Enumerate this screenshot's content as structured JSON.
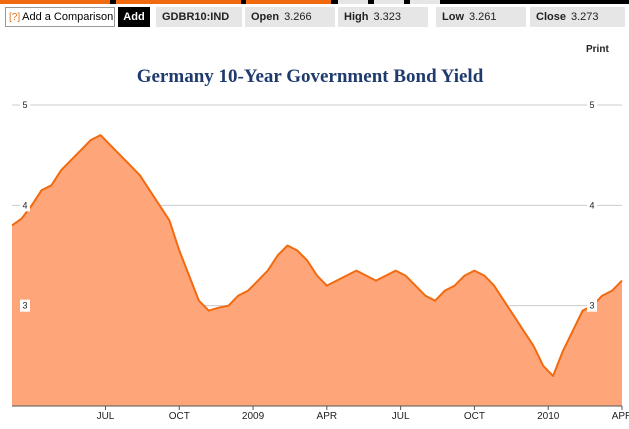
{
  "toolbar": {
    "help_icon": "[?]",
    "add_comparison_label": "Add a Comparison",
    "add_button_label": "Add",
    "ticker": "GDBR10:IND",
    "open_label": "Open",
    "open_value": "3.266",
    "high_label": "High",
    "high_value": "3.323",
    "low_label": "Low",
    "low_value": "3.261",
    "close_label": "Close",
    "close_value": "3.273"
  },
  "print_label": "Print",
  "colors": {
    "accent": "#f26a0f",
    "area_fill": "#ffa57a",
    "title": "#1f3b6e"
  },
  "chart_data": {
    "type": "area",
    "title": "Germany 10-Year Government Bond Yield",
    "xlabel": "",
    "ylabel": "",
    "ylim": [
      2.0,
      5.1
    ],
    "xlim": [
      0,
      24.8
    ],
    "yticks": [
      3,
      4,
      5
    ],
    "ytick_labels": [
      "3",
      "4",
      "5"
    ],
    "xticks": [
      {
        "value": 3.8,
        "label": "JUL"
      },
      {
        "value": 6.8,
        "label": "OCT"
      },
      {
        "value": 9.8,
        "label": "2009"
      },
      {
        "value": 12.8,
        "label": "APR"
      },
      {
        "value": 15.8,
        "label": "JUL"
      },
      {
        "value": 18.8,
        "label": "OCT"
      },
      {
        "value": 21.8,
        "label": "2010"
      },
      {
        "value": 24.8,
        "label": "APR"
      }
    ],
    "grid": true,
    "series": [
      {
        "name": "GDBR10:IND",
        "x": [
          0,
          0.4,
          0.8,
          1.2,
          1.6,
          2.0,
          2.4,
          2.8,
          3.2,
          3.6,
          4.0,
          4.4,
          4.8,
          5.2,
          5.6,
          6.0,
          6.4,
          6.8,
          7.2,
          7.6,
          8.0,
          8.4,
          8.8,
          9.2,
          9.6,
          10.0,
          10.4,
          10.8,
          11.2,
          11.6,
          12.0,
          12.4,
          12.8,
          13.2,
          13.6,
          14.0,
          14.4,
          14.8,
          15.2,
          15.6,
          16.0,
          16.4,
          16.8,
          17.2,
          17.6,
          18.0,
          18.4,
          18.8,
          19.2,
          19.6,
          20.0,
          20.4,
          20.8,
          21.2,
          21.6,
          22.0,
          22.4,
          22.8,
          23.2,
          23.6,
          24.0,
          24.4,
          24.8
        ],
        "values": [
          3.8,
          3.87,
          4.0,
          4.15,
          4.2,
          4.35,
          4.45,
          4.55,
          4.65,
          4.7,
          4.6,
          4.5,
          4.4,
          4.3,
          4.15,
          4.0,
          3.85,
          3.55,
          3.3,
          3.05,
          2.95,
          2.98,
          3.0,
          3.1,
          3.15,
          3.25,
          3.35,
          3.5,
          3.6,
          3.55,
          3.45,
          3.3,
          3.2,
          3.25,
          3.3,
          3.35,
          3.3,
          3.25,
          3.3,
          3.35,
          3.3,
          3.2,
          3.1,
          3.05,
          3.15,
          3.2,
          3.3,
          3.35,
          3.3,
          3.2,
          3.05,
          2.9,
          2.75,
          2.6,
          2.4,
          2.3,
          2.55,
          2.75,
          2.95,
          3.0,
          3.1,
          3.15,
          3.25
        ]
      }
    ]
  }
}
